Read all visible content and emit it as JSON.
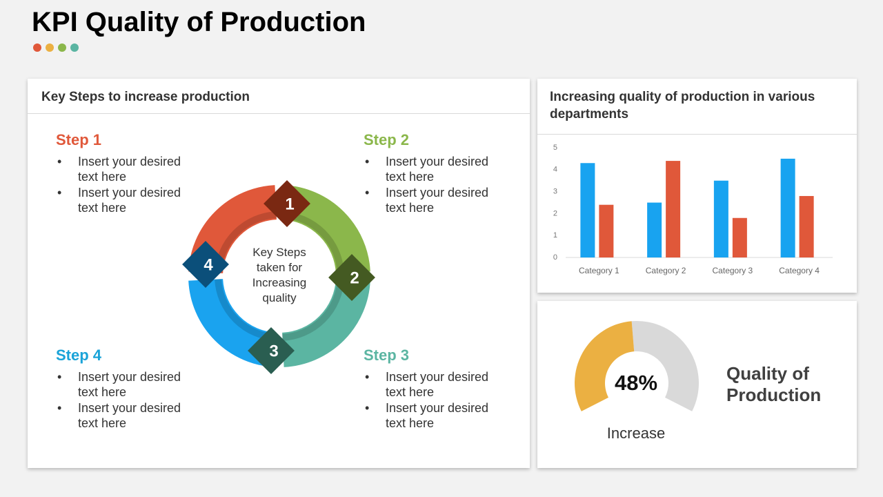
{
  "header": {
    "title": "KPI Quality of Production"
  },
  "steps_panel": {
    "title": "Key Steps to increase production",
    "center_text": "Key Steps taken for Increasing quality",
    "nodes": [
      {
        "label": "1"
      },
      {
        "label": "2"
      },
      {
        "label": "3"
      },
      {
        "label": "4"
      }
    ],
    "steps": [
      {
        "title": "Step 1",
        "bullets": [
          "Insert your desired text here",
          "Insert your desired text here"
        ]
      },
      {
        "title": "Step 2",
        "bullets": [
          "Insert your desired text here",
          "Insert your desired text here"
        ]
      },
      {
        "title": "Step 3",
        "bullets": [
          "Insert your desired text here",
          "Insert your desired text here"
        ]
      },
      {
        "title": "Step 4",
        "bullets": [
          "Insert your desired text here",
          "Insert your desired text here"
        ]
      }
    ]
  },
  "chart_data": [
    {
      "type": "bar",
      "title": "Increasing quality of production in various departments",
      "categories": [
        "Category 1",
        "Category 2",
        "Category 3",
        "Category 4"
      ],
      "series": [
        {
          "color": "#18A3F0",
          "values": [
            4.3,
            2.5,
            3.5,
            4.5
          ]
        },
        {
          "color": "#E0583A",
          "values": [
            2.4,
            4.4,
            1.8,
            2.8
          ]
        }
      ],
      "ylim": [
        0,
        5
      ],
      "yticks": [
        0,
        1,
        2,
        3,
        4,
        5
      ],
      "grid": false
    },
    {
      "type": "gauge",
      "title": "Quality of Production",
      "caption": "Increase",
      "values": [
        48
      ],
      "value_labels": [
        "48%"
      ],
      "ylim": [
        0,
        100
      ],
      "color": "#EBB042",
      "track_color": "#D9D9D9"
    }
  ]
}
